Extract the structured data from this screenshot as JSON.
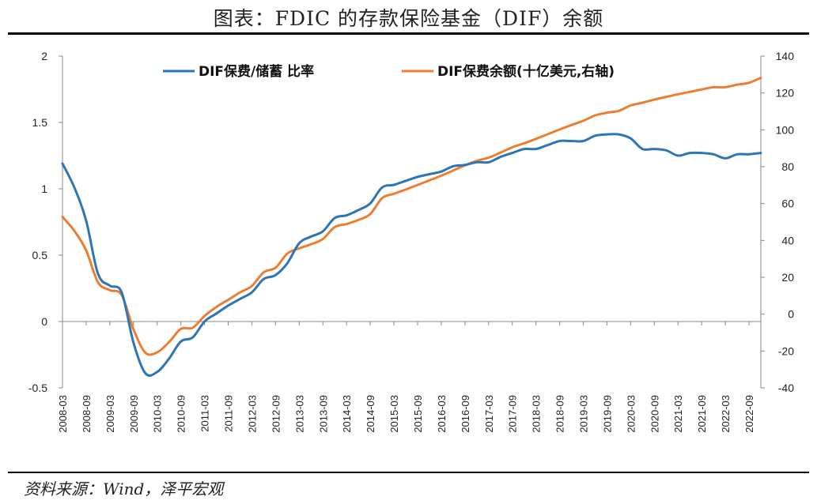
{
  "title": "图表：FDIC 的存款保险基金（DIF）余额",
  "source": "资料来源：Wind，泽平宏观",
  "colors": {
    "ratio": "#2E75B6",
    "balance": "#ED7D31"
  },
  "chart_data": {
    "type": "line",
    "x": [
      "2008-03",
      "2008-06",
      "2008-09",
      "2008-12",
      "2009-03",
      "2009-06",
      "2009-09",
      "2009-12",
      "2010-03",
      "2010-06",
      "2010-09",
      "2010-12",
      "2011-03",
      "2011-06",
      "2011-09",
      "2011-12",
      "2012-03",
      "2012-06",
      "2012-09",
      "2012-12",
      "2013-03",
      "2013-06",
      "2013-09",
      "2013-12",
      "2014-03",
      "2014-06",
      "2014-09",
      "2014-12",
      "2015-03",
      "2015-06",
      "2015-09",
      "2015-12",
      "2016-03",
      "2016-06",
      "2016-09",
      "2016-12",
      "2017-03",
      "2017-06",
      "2017-09",
      "2017-12",
      "2018-03",
      "2018-06",
      "2018-09",
      "2018-12",
      "2019-03",
      "2019-06",
      "2019-09",
      "2019-12",
      "2020-03",
      "2020-06",
      "2020-09",
      "2020-12",
      "2021-03",
      "2021-06",
      "2021-09",
      "2021-12",
      "2022-03",
      "2022-06",
      "2022-09",
      "2022-12"
    ],
    "x_tick_labels": [
      "2008-03",
      "2008-09",
      "2009-03",
      "2009-09",
      "2010-03",
      "2010-09",
      "2011-03",
      "2011-09",
      "2012-03",
      "2012-09",
      "2013-03",
      "2013-09",
      "2014-03",
      "2014-09",
      "2015-03",
      "2015-09",
      "2016-03",
      "2016-09",
      "2017-03",
      "2017-09",
      "2018-03",
      "2018-09",
      "2019-03",
      "2019-09",
      "2020-03",
      "2020-09",
      "2021-03",
      "2021-09",
      "2022-03",
      "2022-09"
    ],
    "left_axis": {
      "ylim": [
        -0.5,
        2
      ],
      "ticks": [
        "-0.5",
        "0",
        "0.5",
        "1",
        "1.5",
        "2"
      ]
    },
    "right_axis": {
      "ylim": [
        -40,
        140
      ],
      "ticks": [
        "-40",
        "-20",
        "0",
        "20",
        "40",
        "60",
        "80",
        "100",
        "120",
        "140"
      ]
    },
    "series": [
      {
        "name": "DIF保费/储蓄 比率",
        "axis": "left",
        "values": [
          1.19,
          1.01,
          0.76,
          0.36,
          0.27,
          0.22,
          -0.16,
          -0.39,
          -0.38,
          -0.28,
          -0.15,
          -0.12,
          0.0,
          0.06,
          0.12,
          0.17,
          0.22,
          0.32,
          0.35,
          0.44,
          0.59,
          0.64,
          0.68,
          0.78,
          0.8,
          0.84,
          0.89,
          1.01,
          1.03,
          1.06,
          1.09,
          1.11,
          1.13,
          1.17,
          1.18,
          1.2,
          1.2,
          1.24,
          1.27,
          1.3,
          1.3,
          1.33,
          1.36,
          1.36,
          1.36,
          1.4,
          1.41,
          1.41,
          1.38,
          1.3,
          1.3,
          1.29,
          1.25,
          1.27,
          1.27,
          1.26,
          1.23,
          1.26,
          1.26,
          1.27
        ]
      },
      {
        "name": "DIF保费余额(十亿美元,右轴)",
        "axis": "right",
        "values": [
          52.8,
          45.2,
          34.6,
          17.3,
          13.0,
          10.4,
          -8.2,
          -20.9,
          -20.7,
          -15.2,
          -8.0,
          -7.4,
          -1.0,
          3.9,
          7.8,
          11.8,
          15.3,
          22.7,
          25.2,
          32.9,
          35.7,
          37.9,
          40.8,
          47.2,
          48.9,
          51.1,
          54.3,
          62.9,
          65.3,
          67.6,
          70.1,
          72.6,
          75.1,
          77.9,
          80.7,
          83.2,
          84.9,
          87.6,
          90.5,
          92.7,
          95.1,
          97.6,
          100.2,
          102.6,
          104.9,
          107.8,
          109.3,
          110.3,
          113.2,
          114.7,
          116.4,
          117.9,
          119.3,
          120.6,
          121.9,
          123.1,
          123.1,
          124.5,
          125.5,
          128.2
        ]
      }
    ],
    "legend_position": "top",
    "grid": false
  }
}
